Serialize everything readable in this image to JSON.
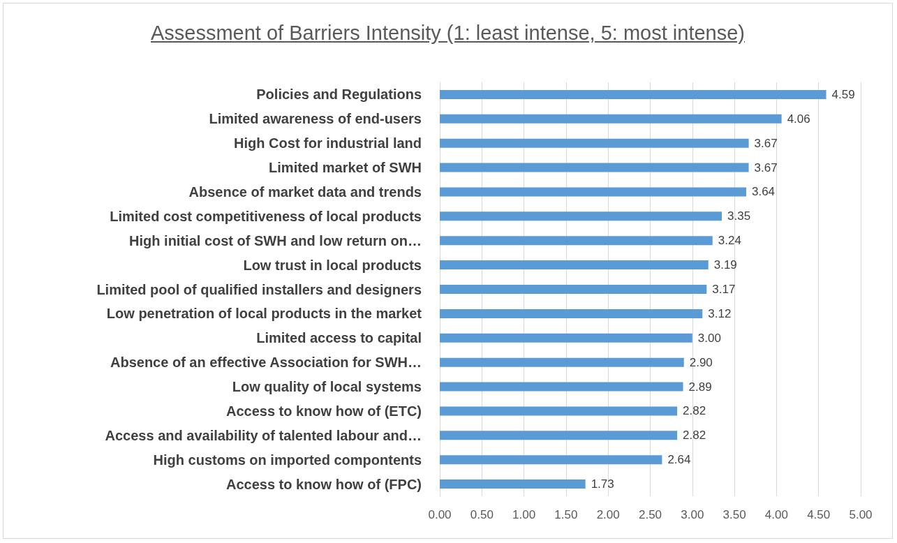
{
  "chart_data": {
    "type": "bar",
    "orientation": "horizontal",
    "title": "Assessment of Barriers Intensity (1: least intense, 5: most intense)",
    "categories": [
      "Policies and Regulations",
      "Limited awareness of end-users",
      "High Cost for industrial land",
      "Limited market of SWH",
      "Absence of market data and trends",
      "Limited cost competitiveness of local products",
      "High initial cost of SWH and low return on…",
      "Low trust in local products",
      "Limited pool of qualified installers and designers",
      "Low penetration of local products in the market",
      "Limited access to capital",
      "Absence of an effective Association for SWH…",
      "Low quality of local systems",
      "Access to know how of (ETC)",
      "Access and availability of talented labour and…",
      "High customs on imported compontents",
      "Access to know how of (FPC)"
    ],
    "values": [
      4.59,
      4.06,
      3.67,
      3.67,
      3.64,
      3.35,
      3.24,
      3.19,
      3.17,
      3.12,
      3.0,
      2.9,
      2.89,
      2.82,
      2.82,
      2.64,
      1.73
    ],
    "value_labels": [
      "4.59",
      "4.06",
      "3.67",
      "3.67",
      "3.64",
      "3.35",
      "3.24",
      "3.19",
      "3.17",
      "3.12",
      "3.00",
      "2.90",
      "2.89",
      "2.82",
      "2.82",
      "2.64",
      "1.73"
    ],
    "color": "#5b9bd5",
    "xlim": [
      0,
      5
    ],
    "xticks": [
      {
        "value": 0,
        "label": "0.00"
      },
      {
        "value": 0.5,
        "label": "0.50"
      },
      {
        "value": 1,
        "label": "1.00"
      },
      {
        "value": 1.5,
        "label": "1.50"
      },
      {
        "value": 2,
        "label": "2.00"
      },
      {
        "value": 2.5,
        "label": "2.50"
      },
      {
        "value": 3,
        "label": "3.00"
      },
      {
        "value": 3.5,
        "label": "3.50"
      },
      {
        "value": 4,
        "label": "4.00"
      },
      {
        "value": 4.5,
        "label": "4.50"
      },
      {
        "value": 5,
        "label": "5.00"
      }
    ],
    "grid": "x"
  }
}
